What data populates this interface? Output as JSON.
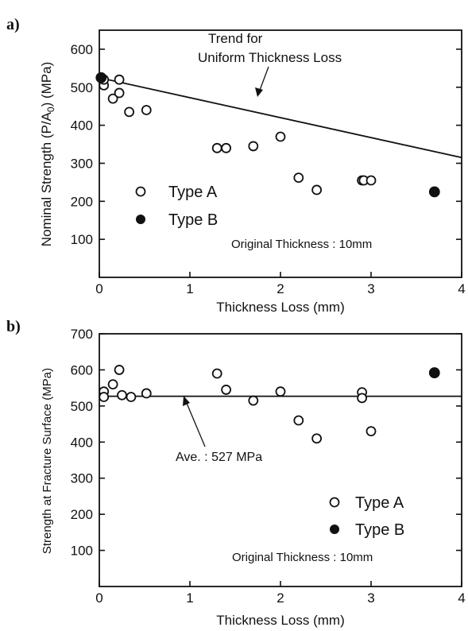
{
  "chart_data": [
    {
      "type": "scatter",
      "panel_label": "a)",
      "xlabel": "Thickness Loss (mm)",
      "ylabel": "Nominal Strength (P/A",
      "ylabel_sub": "0",
      "ylabel_unit": ")  (MPa)",
      "xlim": [
        0,
        4
      ],
      "ylim": [
        0,
        650
      ],
      "xticks": [
        0,
        1,
        2,
        3,
        4
      ],
      "yticks": [
        100,
        200,
        300,
        400,
        500,
        600
      ],
      "grid": false,
      "legend_position": "left",
      "series": [
        {
          "name": "Type A",
          "marker": "open-circle",
          "points": [
            [
              0.05,
              505
            ],
            [
              0.05,
              520
            ],
            [
              0.15,
              470
            ],
            [
              0.22,
              520
            ],
            [
              0.22,
              485
            ],
            [
              0.33,
              435
            ],
            [
              0.52,
              440
            ],
            [
              1.3,
              340
            ],
            [
              1.4,
              340
            ],
            [
              1.7,
              345
            ],
            [
              2.0,
              370
            ],
            [
              2.2,
              262
            ],
            [
              2.4,
              230
            ],
            [
              2.9,
              255
            ],
            [
              2.92,
              255
            ],
            [
              3.0,
              255
            ]
          ]
        },
        {
          "name": "Type B",
          "marker": "filled-circle",
          "points": [
            [
              0.02,
              525
            ],
            [
              3.7,
              225
            ]
          ]
        }
      ],
      "trend_line": {
        "x": [
          0,
          4
        ],
        "y": [
          525,
          315
        ]
      },
      "annotation": {
        "lines": [
          "Trend for",
          "Uniform Thickness Loss"
        ]
      },
      "note": "Original Thickness : 10mm"
    },
    {
      "type": "scatter",
      "panel_label": "b)",
      "xlabel": "Thickness Loss (mm)",
      "ylabel": "Strength at Fracture Surface (MPa)",
      "xlim": [
        0,
        4
      ],
      "ylim": [
        0,
        700
      ],
      "xticks": [
        0,
        1,
        2,
        3,
        4
      ],
      "yticks": [
        100,
        200,
        300,
        400,
        500,
        600,
        700
      ],
      "grid": false,
      "legend_position": "right",
      "series": [
        {
          "name": "Type A",
          "marker": "open-circle",
          "points": [
            [
              0.05,
              540
            ],
            [
              0.05,
              525
            ],
            [
              0.15,
              560
            ],
            [
              0.22,
              600
            ],
            [
              0.25,
              530
            ],
            [
              0.35,
              525
            ],
            [
              0.52,
              535
            ],
            [
              1.3,
              590
            ],
            [
              1.4,
              545
            ],
            [
              1.7,
              515
            ],
            [
              2.0,
              540
            ],
            [
              2.2,
              460
            ],
            [
              2.4,
              410
            ],
            [
              2.9,
              538
            ],
            [
              2.9,
              522
            ],
            [
              3.0,
              430
            ]
          ]
        },
        {
          "name": "Type B",
          "marker": "filled-circle",
          "points": [
            [
              3.7,
              592
            ]
          ]
        }
      ],
      "average_line": {
        "y": 527
      },
      "annotation": {
        "text": "Ave. : 527 MPa"
      },
      "note": "Original Thickness : 10mm"
    }
  ]
}
